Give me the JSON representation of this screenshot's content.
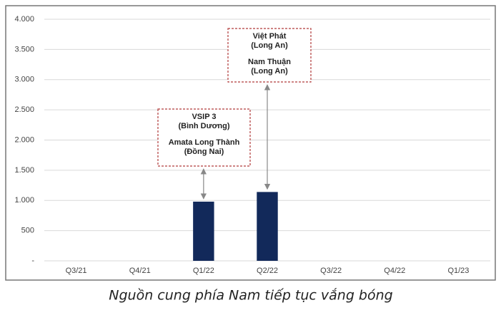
{
  "chart_data": {
    "type": "bar",
    "categories": [
      "Q3/21",
      "Q4/21",
      "Q1/22",
      "Q2/22",
      "Q3/22",
      "Q4/22",
      "Q1/23"
    ],
    "values": [
      null,
      null,
      980,
      1140,
      null,
      null,
      null
    ],
    "color": "#12295a",
    "ylim": [
      0,
      4000
    ],
    "yticks": [
      {
        "value": 0,
        "label": "-"
      },
      500,
      {
        "value": 1000,
        "label": "1.000"
      },
      {
        "value": 1500,
        "label": "1.500"
      },
      {
        "value": 2000,
        "label": "2.000"
      },
      {
        "value": 2500,
        "label": "2.500"
      },
      {
        "value": 3000,
        "label": "3.000"
      },
      {
        "value": 3500,
        "label": "3.500"
      },
      {
        "value": 4000,
        "label": "4.000"
      }
    ],
    "grid": true,
    "annotations": [
      {
        "lines": [
          [
            "VSIP 3",
            "(Bình Dương)"
          ],
          [
            "Amata Long Thành",
            "(Đồng Nai)"
          ]
        ]
      },
      {
        "lines": [
          [
            "Việt Phát",
            "(Long An)"
          ],
          [
            "Nam Thuận",
            "(Long An)"
          ]
        ]
      }
    ],
    "caption": "Nguồn cung phía Nam tiếp tục vắng bóng"
  }
}
